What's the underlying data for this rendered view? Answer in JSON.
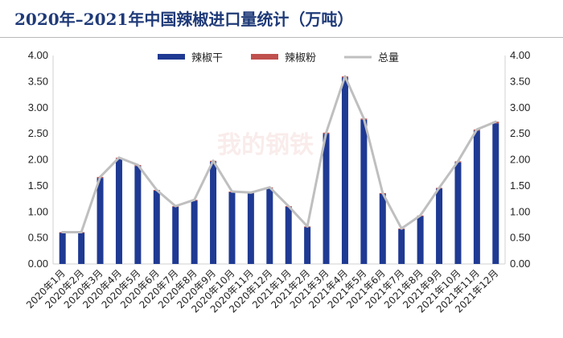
{
  "title": "2020年–2021年中国辣椒进口量统计（万吨）",
  "watermark": "我的钢铁",
  "colors": {
    "dried": "#1f3a93",
    "powder": "#c0504d",
    "total": "#bfbfbf"
  },
  "chart_data": {
    "type": "bar",
    "title": "2020年–2021年中国辣椒进口量统计（万吨）",
    "categories": [
      "2020年1月",
      "2020年2月",
      "2020年3月",
      "2020年4月",
      "2020年5月",
      "2020年6月",
      "2020年7月",
      "2020年8月",
      "2020年9月",
      "2020年10月",
      "2020年11月",
      "2020年12月",
      "2021年1月",
      "2021年2月",
      "2021年3月",
      "2021年4月",
      "2021年5月",
      "2021年6月",
      "2021年7月",
      "2021年8月",
      "2021年9月",
      "2021年10月",
      "2021年11月",
      "2021年12月"
    ],
    "series": [
      {
        "name": "辣椒干",
        "type": "bar",
        "values": [
          0.6,
          0.6,
          1.65,
          2.02,
          1.88,
          1.41,
          1.1,
          1.22,
          1.96,
          1.38,
          1.36,
          1.45,
          1.1,
          0.71,
          2.5,
          3.58,
          2.77,
          1.35,
          0.67,
          0.92,
          1.45,
          1.95,
          2.56,
          2.7
        ]
      },
      {
        "name": "辣椒粉",
        "type": "bar",
        "values": [
          0.01,
          0.01,
          0.02,
          0.02,
          0.02,
          0.01,
          0.01,
          0.01,
          0.02,
          0.01,
          0.01,
          0.02,
          0.01,
          0.01,
          0.02,
          0.02,
          0.02,
          0.01,
          0.01,
          0.01,
          0.01,
          0.02,
          0.02,
          0.03
        ]
      },
      {
        "name": "总量",
        "type": "line",
        "values": [
          0.61,
          0.61,
          1.67,
          2.04,
          1.9,
          1.42,
          1.11,
          1.23,
          1.98,
          1.39,
          1.37,
          1.47,
          1.11,
          0.72,
          2.52,
          3.6,
          2.79,
          1.36,
          0.68,
          0.93,
          1.46,
          1.97,
          2.58,
          2.73
        ]
      }
    ],
    "ylim": [
      0,
      4.0
    ],
    "yticks": [
      "0.00",
      "0.50",
      "1.00",
      "1.50",
      "2.00",
      "2.50",
      "3.00",
      "3.50",
      "4.00"
    ],
    "secondary_axis": true,
    "grid": false,
    "legend_position": "top-center"
  }
}
